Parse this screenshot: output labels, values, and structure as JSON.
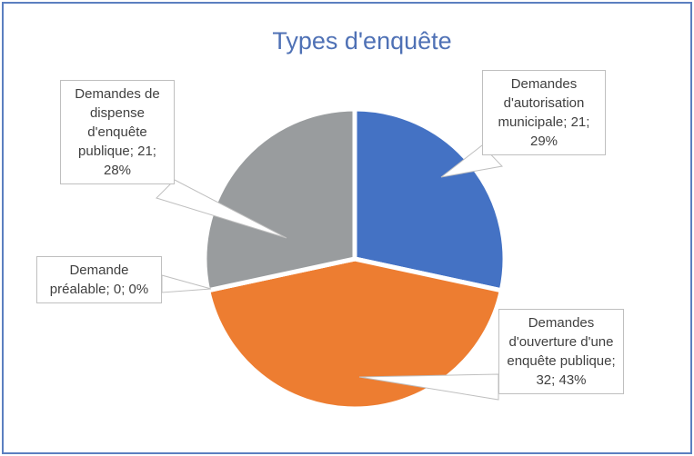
{
  "chart_data": {
    "type": "pie",
    "title": "Types d'enquête",
    "values": [
      21,
      32,
      0,
      21
    ],
    "value_labels": [
      "Demandes d'autorisation municipale; 21; 29%",
      "Demandes d'ouverture d'une enquête publique; 32; 43%",
      "Demande préalable; 0; 0%",
      "Demandes de dispense d'enquête publique; 21; 28%"
    ],
    "colors": [
      "#4472c4",
      "#ed7d31",
      "#a5a5a5",
      "#999c9e"
    ]
  }
}
